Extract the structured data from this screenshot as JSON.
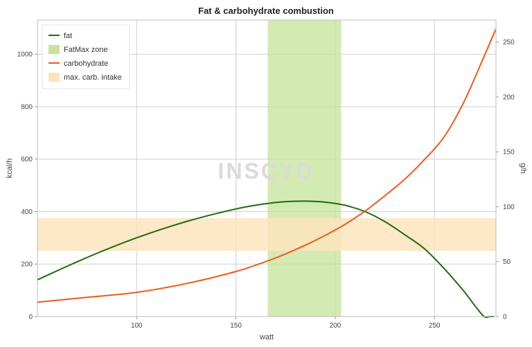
{
  "chart_data": {
    "type": "line",
    "title": "Fat & carbohydrate combustion",
    "xlabel": "watt",
    "ylabel_left": "kcal/h",
    "ylabel_right": "g/h",
    "watermark": "INSCYD",
    "xlim": [
      50,
      281
    ],
    "ylim_left": [
      0,
      1130
    ],
    "ylim_right": [
      0,
      270
    ],
    "x_ticks": [
      100,
      150,
      200,
      250
    ],
    "y_left_ticks": [
      0,
      200,
      400,
      600,
      800,
      1000
    ],
    "y_right_ticks": [
      0,
      50,
      100,
      150,
      200,
      250
    ],
    "grid": true,
    "legend_position": "top-left",
    "series": [
      {
        "name": "fat",
        "axis": "left",
        "color": "#1e6b0f",
        "x": [
          50,
          75,
          100,
          125,
          150,
          165,
          175,
          185,
          195,
          205,
          215,
          225,
          235,
          245,
          255,
          265,
          270,
          275,
          278,
          280
        ],
        "y": [
          140,
          225,
          300,
          362,
          410,
          430,
          438,
          440,
          436,
          424,
          400,
          362,
          312,
          258,
          182,
          95,
          45,
          0,
          0,
          0
        ]
      },
      {
        "name": "carbohydrate",
        "axis": "right",
        "color": "#ee5a1a",
        "x": [
          50,
          75,
          100,
          125,
          150,
          165,
          175,
          185,
          195,
          205,
          215,
          225,
          235,
          245,
          255,
          265,
          275,
          281
        ],
        "y": [
          13,
          17.5,
          22,
          30,
          41,
          50,
          57,
          65,
          74,
          84,
          96,
          110,
          125,
          143,
          164,
          196,
          237,
          262
        ]
      }
    ],
    "bands": [
      {
        "name": "FatMax zone",
        "orientation": "vertical",
        "from": 166,
        "to": 203,
        "color": "#c6e39a"
      },
      {
        "name": "max. carb. intake",
        "orientation": "horizontal",
        "axis": "left",
        "from": 250,
        "to": 375,
        "color": "#fde4bd"
      }
    ]
  }
}
